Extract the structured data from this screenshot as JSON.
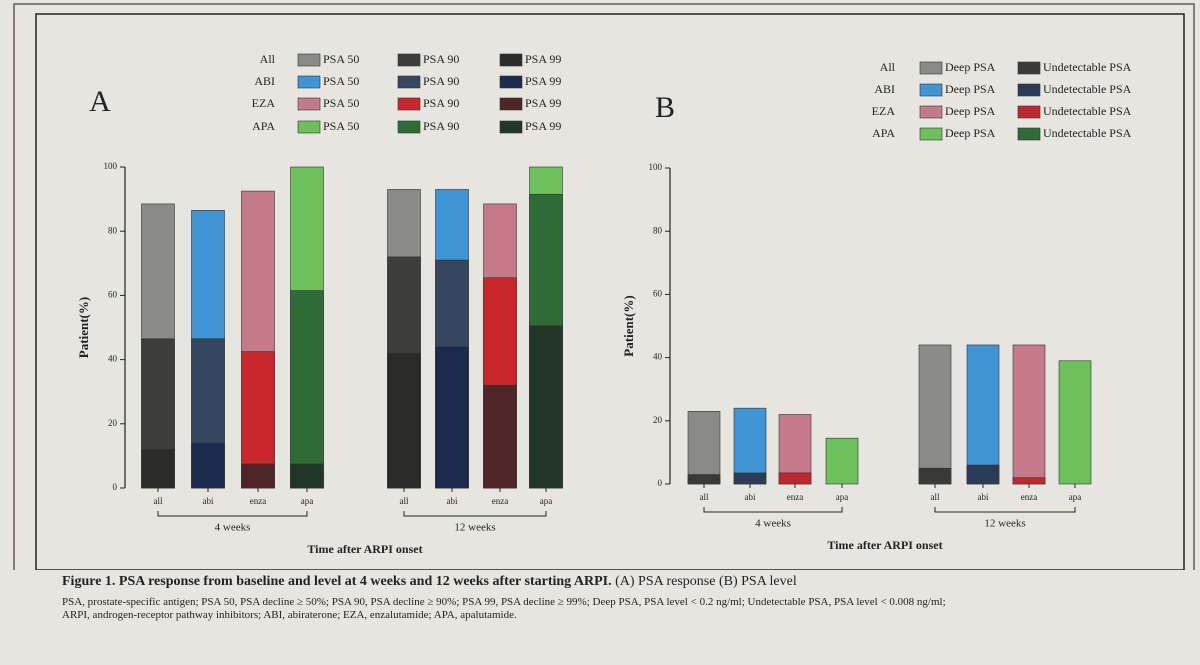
{
  "caption": {
    "title": "Figure 1. PSA response from baseline and level at 4 weeks and 12 weeks after starting ARPI.",
    "subtitle": "(A) PSA response (B) PSA level",
    "notes": [
      "PSA, prostate-specific antigen; PSA 50, PSA decline ≥ 50%; PSA 90, PSA decline ≥ 90%; PSA 99, PSA decline ≥ 99%; Deep PSA, PSA level < 0.2 ng/ml; Undetectable PSA, PSA level < 0.008 ng/ml;",
      "ARPI, androgen-receptor pathway inhibitors; ABI, abiraterone; EZA, enzalutamide; APA, apalutamide."
    ]
  },
  "chart_data": [
    {
      "type": "bar",
      "panel": "A",
      "y_label": "Patient(%)",
      "x_label": "Time after ARPI onset",
      "groups": [
        "4 weeks",
        "12 weeks"
      ],
      "ylim": [
        0,
        100
      ],
      "yticks": [
        0,
        20,
        40,
        60,
        80,
        100
      ],
      "series": [
        {
          "name": "All",
          "category": "all",
          "levels": [
            {
              "name": "PSA 50",
              "color": "#8a8a86",
              "values": [
                88.5,
                93
              ]
            },
            {
              "name": "PSA 90",
              "color": "#3e3f3c",
              "values": [
                46.5,
                72
              ]
            },
            {
              "name": "PSA 99",
              "color": "#2b2c29",
              "values": [
                12,
                42
              ]
            }
          ]
        },
        {
          "name": "ABI",
          "category": "abi",
          "levels": [
            {
              "name": "PSA 50",
              "color": "#3f95d3",
              "values": [
                86.5,
                93
              ]
            },
            {
              "name": "PSA 90",
              "color": "#34475e",
              "values": [
                46.5,
                71
              ]
            },
            {
              "name": "PSA 99",
              "color": "#1c2a4e",
              "values": [
                14,
                44
              ]
            }
          ]
        },
        {
          "name": "EZA",
          "category": "enza",
          "levels": [
            {
              "name": "PSA 50",
              "color": "#c47a88",
              "values": [
                92.5,
                88.5
              ]
            },
            {
              "name": "PSA 90",
              "color": "#c8262d",
              "values": [
                42.5,
                65.5
              ]
            },
            {
              "name": "PSA 99",
              "color": "#4e2628",
              "values": [
                7.5,
                32
              ]
            }
          ]
        },
        {
          "name": "APA",
          "category": "apa",
          "levels": [
            {
              "name": "PSA 50",
              "color": "#6cc15c",
              "values": [
                100,
                100
              ]
            },
            {
              "name": "PSA 90",
              "color": "#2f6b36",
              "values": [
                61.5,
                91.5
              ]
            },
            {
              "name": "PSA 99",
              "color": "#213626",
              "values": [
                7.5,
                50.5
              ]
            }
          ]
        }
      ]
    },
    {
      "type": "bar",
      "panel": "B",
      "y_label": "Patient(%)",
      "x_label": "Time after ARPI onset",
      "groups": [
        "4 weeks",
        "12 weeks"
      ],
      "ylim": [
        0,
        100
      ],
      "yticks": [
        0,
        20,
        40,
        60,
        80,
        100
      ],
      "series": [
        {
          "name": "All",
          "category": "all",
          "levels": [
            {
              "name": "Deep PSA",
              "color": "#8a8a86",
              "values": [
                23,
                44
              ]
            },
            {
              "name": "Undetectable PSA",
              "color": "#3a3a38",
              "values": [
                3,
                5
              ]
            }
          ]
        },
        {
          "name": "ABI",
          "category": "abi",
          "levels": [
            {
              "name": "Deep PSA",
              "color": "#3f95d3",
              "values": [
                24,
                44
              ]
            },
            {
              "name": "Undetectable PSA",
              "color": "#2c3b58",
              "values": [
                3.5,
                6
              ]
            }
          ]
        },
        {
          "name": "EZA",
          "category": "enza",
          "levels": [
            {
              "name": "Deep PSA",
              "color": "#c47a88",
              "values": [
                22,
                44
              ]
            },
            {
              "name": "Undetectable PSA",
              "color": "#c0282f",
              "values": [
                3.5,
                2
              ]
            }
          ]
        },
        {
          "name": "APA",
          "category": "apa",
          "levels": [
            {
              "name": "Deep PSA",
              "color": "#6cc15c",
              "values": [
                14.5,
                39
              ]
            },
            {
              "name": "Undetectable PSA",
              "color": "#2f6b36",
              "values": [
                0,
                0
              ]
            }
          ]
        }
      ]
    }
  ]
}
